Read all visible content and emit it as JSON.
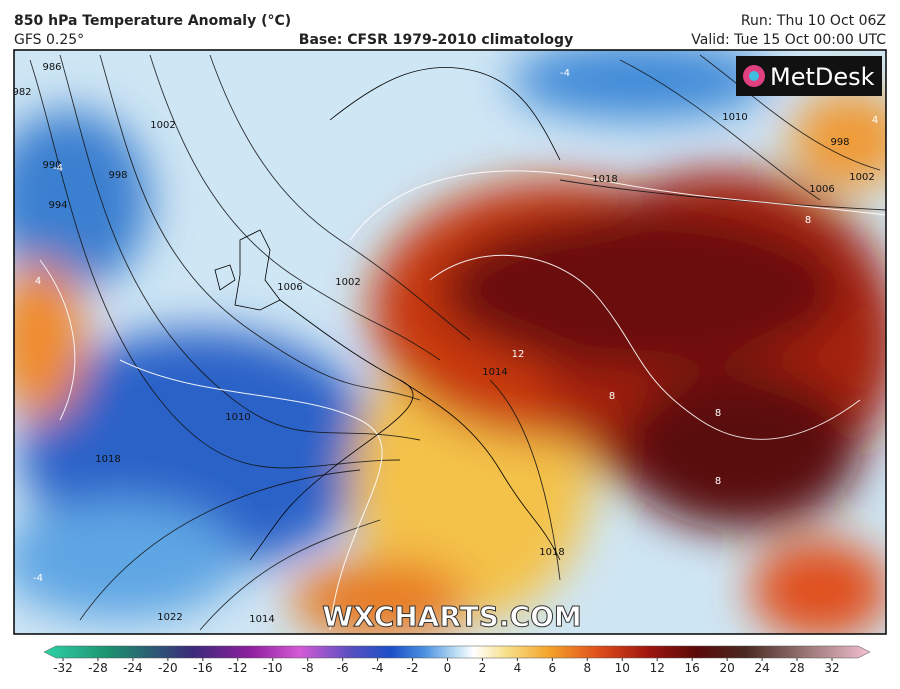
{
  "header": {
    "title": "850 hPa Temperature Anomaly (°C)",
    "model": "GFS 0.25°",
    "base": "Base: CFSR 1979-2010 climatology",
    "run": "Run: Thu 10 Oct 06Z",
    "valid": "Valid: Tue 15 Oct 00:00 UTC"
  },
  "logo": "MetDesk",
  "watermark": "WXCHARTS.COM",
  "isobar_labels": [
    986,
    982,
    990,
    994,
    998,
    1002,
    1006,
    1002,
    1010,
    1018,
    1022,
    1014,
    1014,
    1018,
    1018,
    1010,
    998,
    1002,
    1006
  ],
  "anomaly_labels": [
    12,
    8,
    8,
    8,
    8,
    -4,
    -4,
    4,
    4,
    -4
  ],
  "colorbar": {
    "ticks": [
      -32,
      -28,
      -24,
      -20,
      -16,
      -12,
      -10,
      -8,
      -6,
      -4,
      -2,
      0,
      2,
      4,
      6,
      8,
      10,
      12,
      16,
      20,
      24,
      28,
      32
    ]
  }
}
